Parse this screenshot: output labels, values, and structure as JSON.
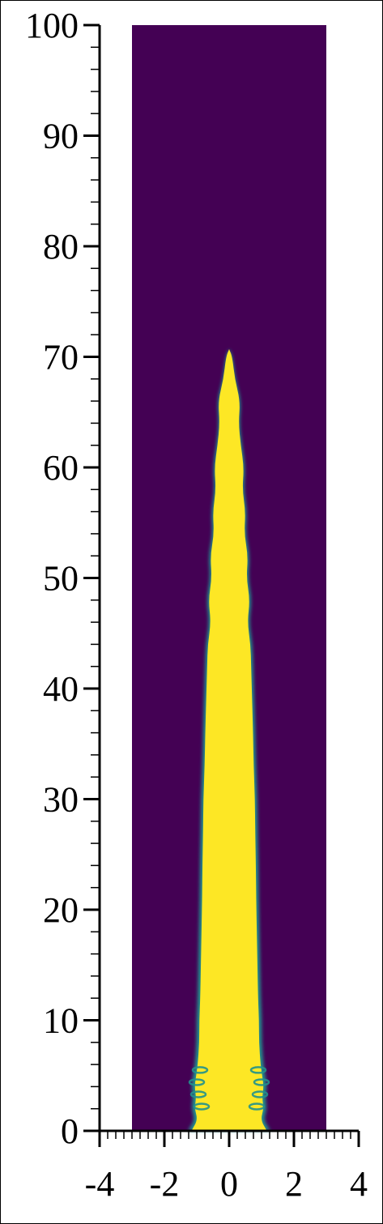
{
  "chart_data": {
    "type": "heatmap",
    "title": "",
    "xlabel": "",
    "ylabel": "",
    "xlim": [
      -4,
      4
    ],
    "ylim": [
      0,
      100
    ],
    "domain_x": [
      -3,
      3
    ],
    "domain_y": [
      0,
      100
    ],
    "x_ticks": [
      -4,
      -2,
      0,
      2,
      4
    ],
    "x_tick_labels": [
      "-4",
      "-2",
      "0",
      "2",
      "4"
    ],
    "y_ticks": [
      0,
      10,
      20,
      30,
      40,
      50,
      60,
      70,
      80,
      90,
      100
    ],
    "y_tick_labels": [
      "0",
      "10",
      "20",
      "30",
      "40",
      "50",
      "60",
      "70",
      "80",
      "90",
      "100"
    ],
    "colormap": "viridis",
    "background_color": "#440154",
    "jet_color": "#fde725",
    "edge_color": "#21918c",
    "jet_profile": [
      {
        "y": 0,
        "half_width": 1.2
      },
      {
        "y": 1,
        "half_width": 1.0
      },
      {
        "y": 2,
        "half_width": 1.1
      },
      {
        "y": 3,
        "half_width": 1.05
      },
      {
        "y": 4,
        "half_width": 1.1
      },
      {
        "y": 5,
        "half_width": 1.05
      },
      {
        "y": 6,
        "half_width": 1.0
      },
      {
        "y": 8,
        "half_width": 0.95
      },
      {
        "y": 10,
        "half_width": 0.95
      },
      {
        "y": 12,
        "half_width": 0.92
      },
      {
        "y": 15,
        "half_width": 0.9
      },
      {
        "y": 18,
        "half_width": 0.88
      },
      {
        "y": 21,
        "half_width": 0.86
      },
      {
        "y": 24,
        "half_width": 0.85
      },
      {
        "y": 27,
        "half_width": 0.83
      },
      {
        "y": 30,
        "half_width": 0.82
      },
      {
        "y": 33,
        "half_width": 0.78
      },
      {
        "y": 36,
        "half_width": 0.76
      },
      {
        "y": 39,
        "half_width": 0.73
      },
      {
        "y": 42,
        "half_width": 0.7
      },
      {
        "y": 44,
        "half_width": 0.68
      },
      {
        "y": 46,
        "half_width": 0.58
      },
      {
        "y": 48,
        "half_width": 0.66
      },
      {
        "y": 50,
        "half_width": 0.55
      },
      {
        "y": 52,
        "half_width": 0.6
      },
      {
        "y": 54,
        "half_width": 0.48
      },
      {
        "y": 56,
        "half_width": 0.52
      },
      {
        "y": 58,
        "half_width": 0.42
      },
      {
        "y": 60,
        "half_width": 0.47
      },
      {
        "y": 62,
        "half_width": 0.37
      },
      {
        "y": 64,
        "half_width": 0.3
      },
      {
        "y": 66,
        "half_width": 0.35
      },
      {
        "y": 68,
        "half_width": 0.18
      },
      {
        "y": 70,
        "half_width": 0.1
      },
      {
        "y": 70.7,
        "half_width": 0
      }
    ]
  }
}
